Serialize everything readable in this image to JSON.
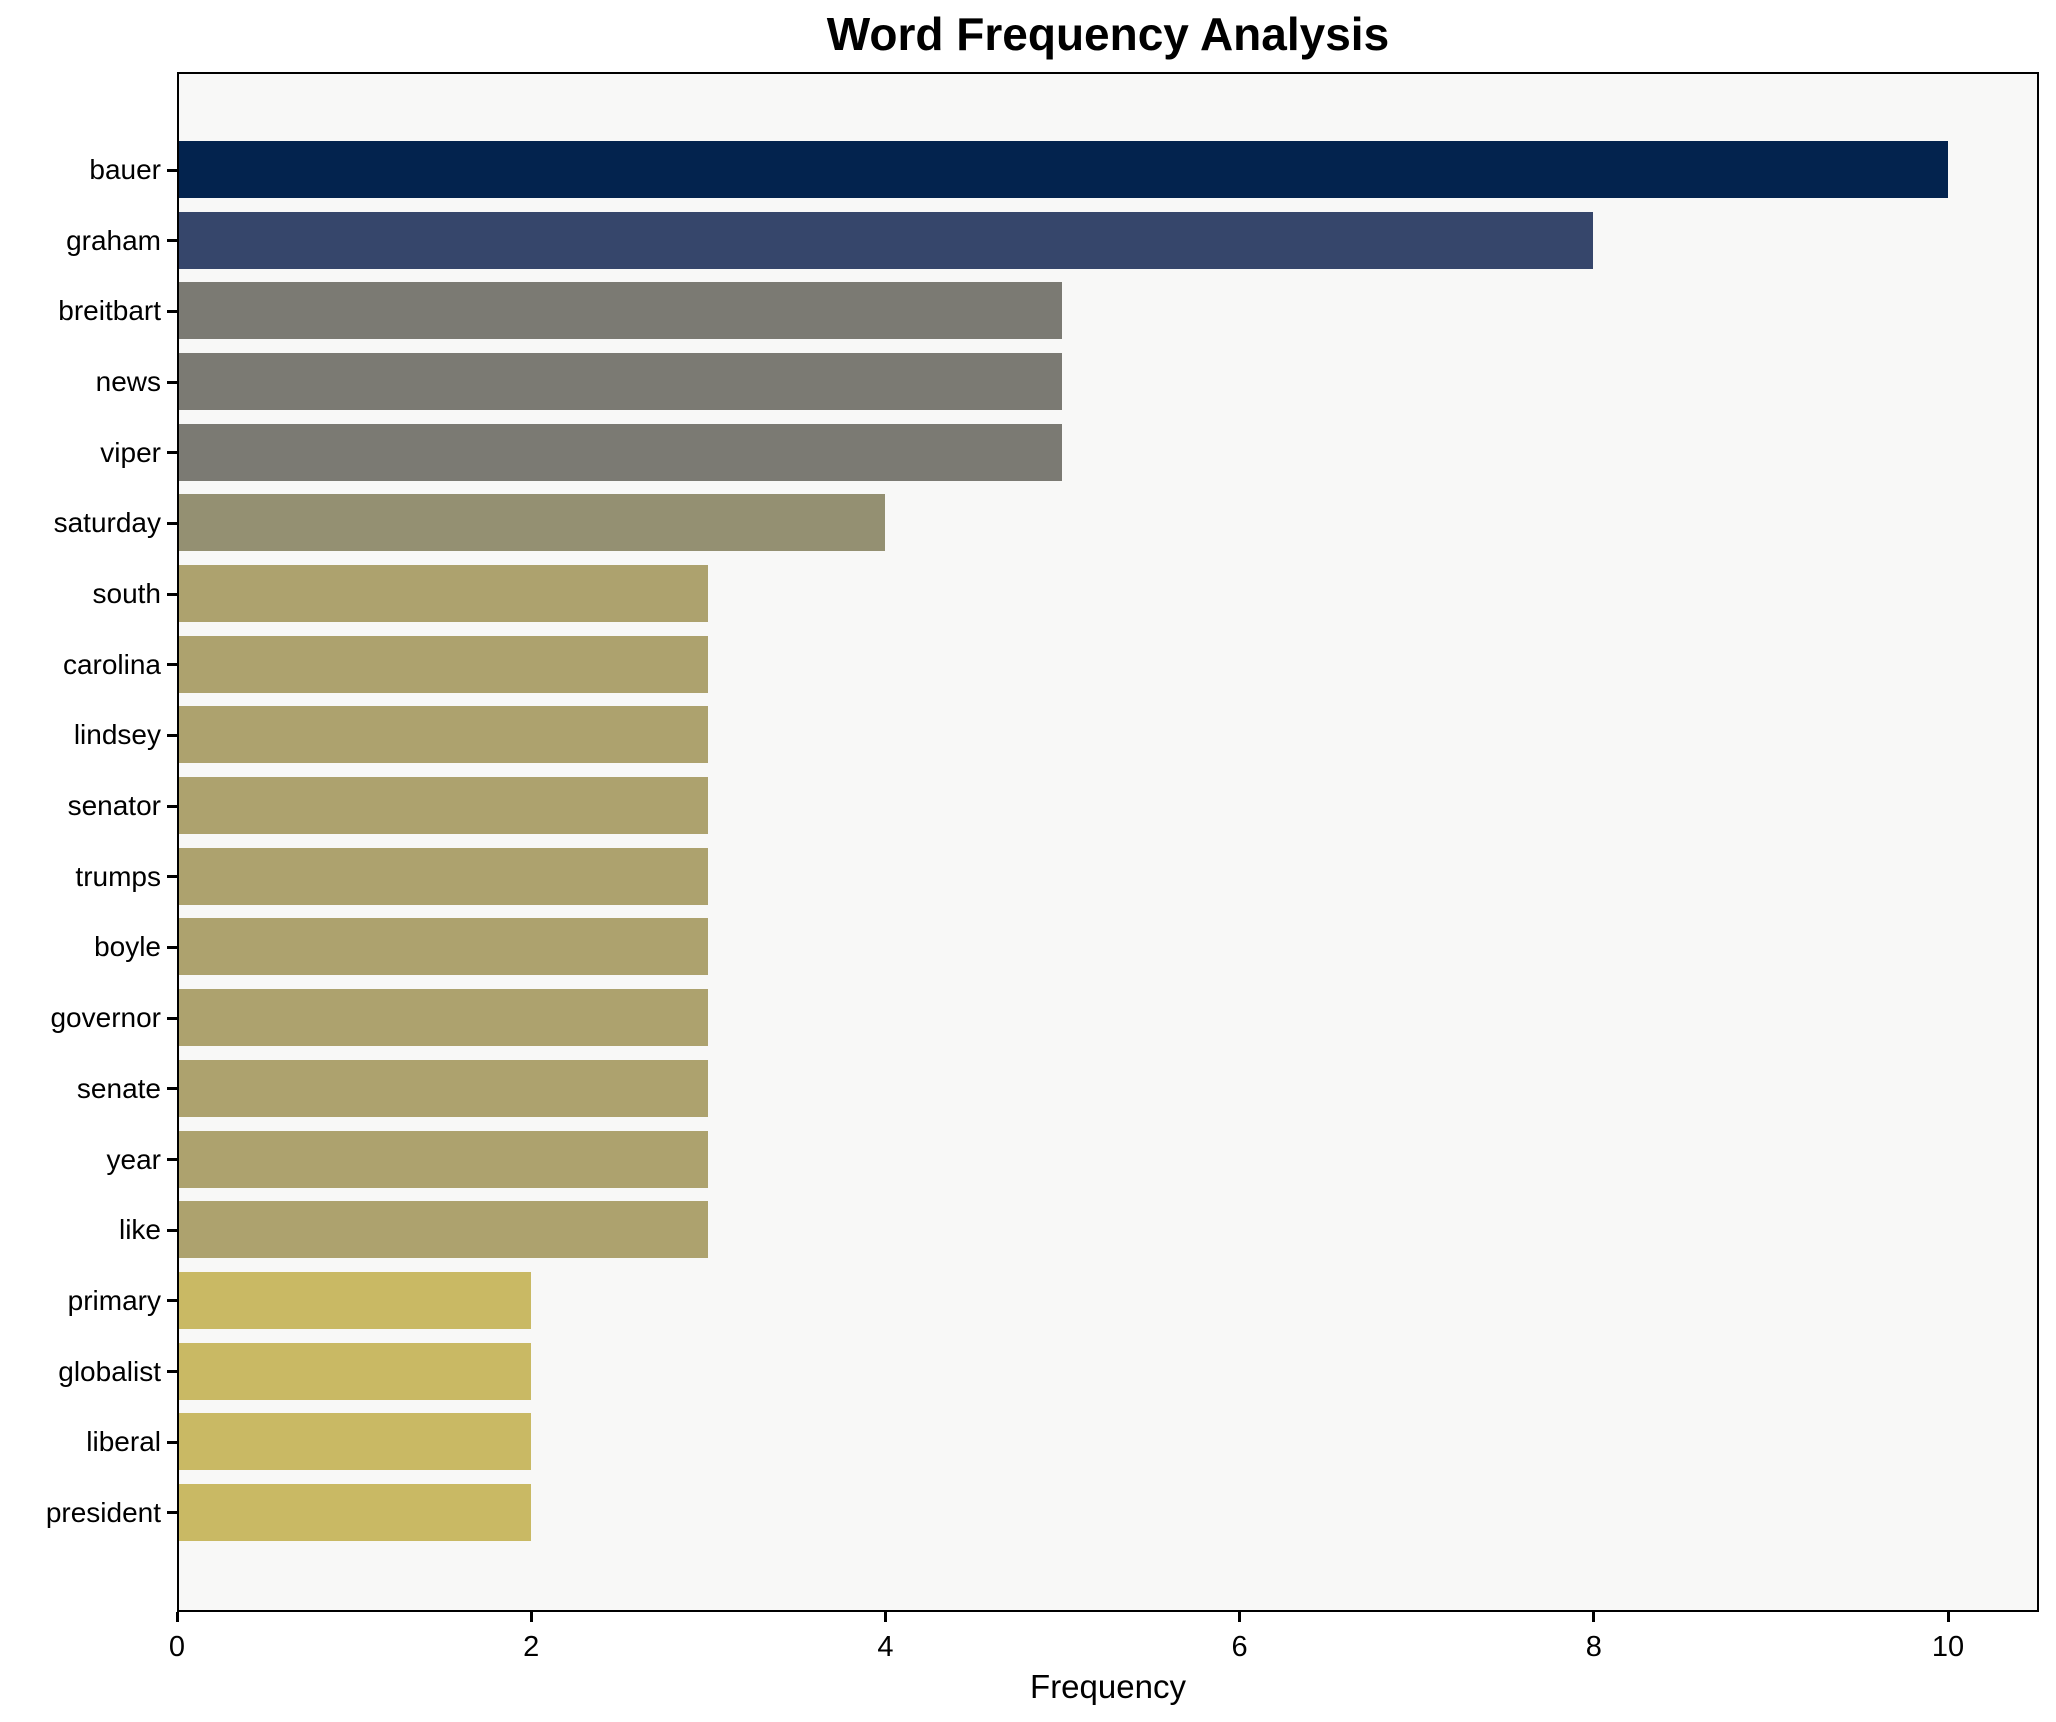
{
  "chart_data": {
    "type": "bar",
    "orientation": "horizontal",
    "title": "Word Frequency Analysis",
    "xlabel": "Frequency",
    "ylabel": "",
    "xlim": [
      0,
      10.5
    ],
    "xticks": [
      "0",
      "2",
      "4",
      "6",
      "8",
      "10"
    ],
    "grid": false,
    "legend": false,
    "plot_background": "#f8f8f7",
    "page_background": "#ffffff",
    "spine_color": "#000000",
    "categories": [
      "bauer",
      "graham",
      "breitbart",
      "news",
      "viper",
      "saturday",
      "south",
      "carolina",
      "lindsey",
      "senator",
      "trumps",
      "boyle",
      "governor",
      "senate",
      "year",
      "like",
      "primary",
      "globalist",
      "liberal",
      "president"
    ],
    "values": [
      10,
      8,
      5,
      5,
      5,
      4,
      3,
      3,
      3,
      3,
      3,
      3,
      3,
      3,
      3,
      3,
      2,
      2,
      2,
      2
    ],
    "bar_colors": [
      "#03234e",
      "#36466b",
      "#7b7a73",
      "#7b7a73",
      "#7b7a73",
      "#949072",
      "#ada26e",
      "#ada26e",
      "#ada26e",
      "#ada26e",
      "#ada26e",
      "#ada26e",
      "#ada26e",
      "#ada26e",
      "#ada26e",
      "#ada26e",
      "#c9b964",
      "#c9b964",
      "#c9b964",
      "#c9b964"
    ]
  }
}
